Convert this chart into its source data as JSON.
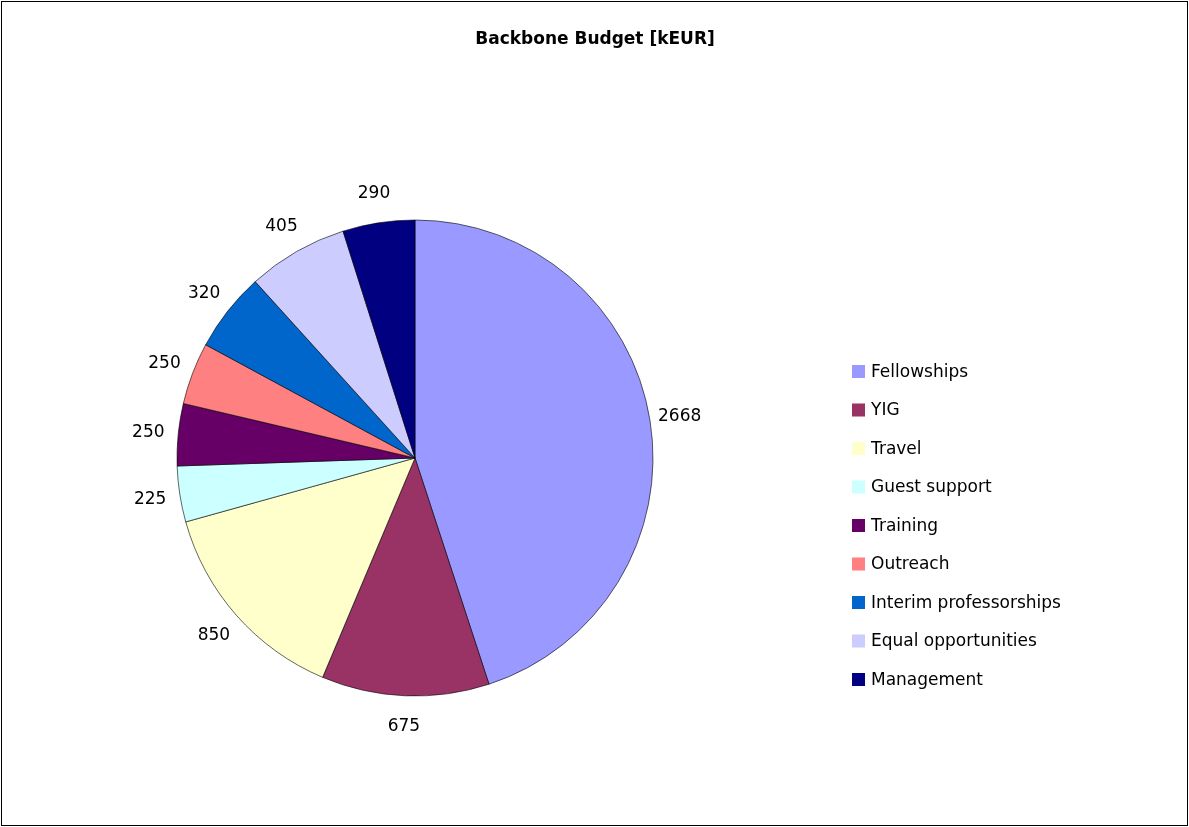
{
  "chart_data": {
    "type": "pie",
    "title": "Backbone Budget [kEUR]",
    "categories": [
      "Fellowships",
      "YIG",
      "Travel",
      "Guest support",
      "Training",
      "Outreach",
      "Interim professorships",
      "Equal opportunities",
      "Management"
    ],
    "values": [
      2668,
      675,
      850,
      225,
      250,
      250,
      320,
      405,
      290
    ],
    "colors": [
      "#9999ff",
      "#993366",
      "#ffffcc",
      "#ccffff",
      "#660066",
      "#ff8080",
      "#0066cc",
      "#ccccff",
      "#000080"
    ],
    "data_labels": true,
    "legend": "right"
  }
}
